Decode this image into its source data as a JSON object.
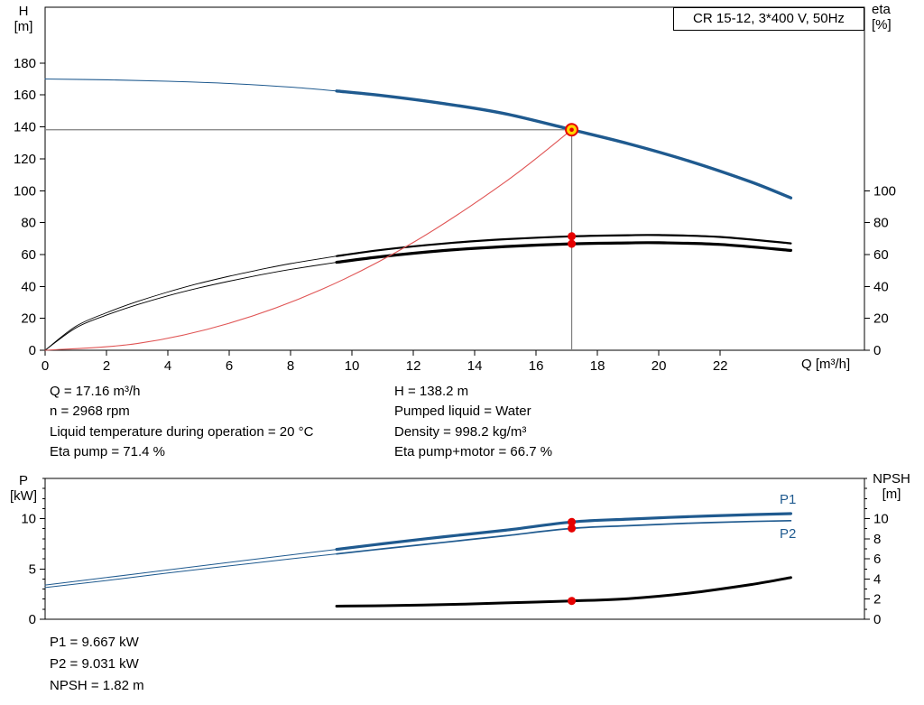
{
  "title_box": "CR 15-12, 3*400 V, 50Hz",
  "axis_labels": {
    "h": "H",
    "h_unit": "[m]",
    "eta": "eta",
    "eta_unit": "[%]",
    "q": "Q [m³/h]",
    "p": "P",
    "p_unit": "[kW]",
    "npsh": "NPSH",
    "npsh_unit": "[m]"
  },
  "info": {
    "q": "Q = 17.16 m³/h",
    "n": "n = 2968 rpm",
    "liquid_temp": "Liquid temperature during operation = 20 °C",
    "eta_pump": "Eta pump = 71.4 %",
    "h": "H = 138.2 m",
    "pumped_liquid": "Pumped liquid = Water",
    "density": "Density = 998.2 kg/m³",
    "eta_pump_motor": "Eta pump+motor = 66.7 %"
  },
  "results": {
    "p1": "P1 = 9.667 kW",
    "p2": "P2 = 9.031 kW",
    "npsh": "NPSH = 1.82 m"
  },
  "labels": {
    "p1": "P1",
    "p2": "P2"
  },
  "colors": {
    "curve_blue": "#1f5a8f",
    "curve_black": "#000000",
    "system_red": "#e05555",
    "marker_red": "#e60000",
    "marker_yellow": "#ffd400",
    "crosshair_gray": "#7f7f7f",
    "frame": "#000000"
  },
  "chart_data": [
    {
      "type": "line",
      "name": "hq-eta-chart",
      "title": "CR 15-12, 3*400 V, 50Hz",
      "xlabel": "Q [m³/h]",
      "ylabel_left": "H [m]",
      "ylabel_right": "eta [%]",
      "xlim": [
        0,
        26.7
      ],
      "ylim_left": [
        0,
        215
      ],
      "ylim_right": [
        0,
        215
      ],
      "x_ticks": [
        0,
        2,
        4,
        6,
        8,
        10,
        12,
        14,
        16,
        18,
        20,
        22
      ],
      "y_ticks_left": [
        0,
        20,
        40,
        60,
        80,
        100,
        120,
        140,
        160,
        180
      ],
      "y_ticks_right": [
        0,
        20,
        40,
        60,
        80,
        100
      ],
      "grid": false,
      "series": [
        {
          "name": "head-curve",
          "axis": "left",
          "color": "#1f5a8f",
          "split_at": 9.5,
          "width_thin": 1.1,
          "width_thick": 3.4,
          "points": [
            [
              0,
              170
            ],
            [
              2,
              169.5
            ],
            [
              4,
              168.6
            ],
            [
              6,
              167.2
            ],
            [
              8,
              164.9
            ],
            [
              9.5,
              162.5
            ],
            [
              11,
              159.6
            ],
            [
              13,
              154.6
            ],
            [
              15,
              148.2
            ],
            [
              17.16,
              138.2
            ],
            [
              19,
              129.5
            ],
            [
              21,
              118.5
            ],
            [
              23,
              105.5
            ],
            [
              24.3,
              95.5
            ]
          ]
        },
        {
          "name": "eta-pump-curve",
          "axis": "right",
          "color": "#000000",
          "split_at": 9.5,
          "width_thin": 0.9,
          "width_thick": 2.2,
          "points": [
            [
              0,
              0
            ],
            [
              1,
              15
            ],
            [
              2,
              23.5
            ],
            [
              3,
              30.5
            ],
            [
              4,
              36.5
            ],
            [
              5,
              41.8
            ],
            [
              6,
              46.4
            ],
            [
              7,
              50.5
            ],
            [
              8,
              54.3
            ],
            [
              9.5,
              59
            ],
            [
              11,
              63
            ],
            [
              13,
              66.9
            ],
            [
              15,
              69.6
            ],
            [
              17.16,
              71.4
            ],
            [
              19,
              72.1
            ],
            [
              20,
              72.2
            ],
            [
              22,
              71
            ],
            [
              24.3,
              67
            ]
          ]
        },
        {
          "name": "eta-pump-motor-curve",
          "axis": "right",
          "color": "#000000",
          "split_at": 9.5,
          "width_thin": 0.9,
          "width_thick": 3.2,
          "points": [
            [
              0,
              0
            ],
            [
              1,
              14
            ],
            [
              2,
              22
            ],
            [
              3,
              28.5
            ],
            [
              4,
              34.1
            ],
            [
              5,
              39
            ],
            [
              6,
              43.3
            ],
            [
              7,
              47.2
            ],
            [
              8,
              50.7
            ],
            [
              9.5,
              55.1
            ],
            [
              11,
              58.8
            ],
            [
              13,
              62.5
            ],
            [
              15,
              65
            ],
            [
              17.16,
              66.7
            ],
            [
              19,
              67.3
            ],
            [
              20,
              67.4
            ],
            [
              22,
              66.3
            ],
            [
              24.3,
              62.6
            ]
          ]
        },
        {
          "name": "system-curve",
          "axis": "left",
          "color": "#e05555",
          "width": 1.1,
          "points": [
            [
              0,
              0
            ],
            [
              3,
              4.2
            ],
            [
              6,
              16.9
            ],
            [
              9,
              38
            ],
            [
              12,
              67.6
            ],
            [
              15,
              105.6
            ],
            [
              17.16,
              138.2
            ]
          ]
        }
      ],
      "crosshair": {
        "q": 17.16,
        "h": 138.2
      },
      "operating_point": {
        "q": 17.16,
        "h": 138.2
      },
      "dots": [
        {
          "q": 17.16,
          "v": 71.4,
          "axis": "right"
        },
        {
          "q": 17.16,
          "v": 66.7,
          "axis": "right"
        }
      ]
    },
    {
      "type": "line",
      "name": "power-npsh-chart",
      "xlabel": "Q [m³/h]",
      "ylabel_left": "P [kW]",
      "ylabel_right": "NPSH [m]",
      "xlim": [
        0,
        26.7
      ],
      "ylim_left": [
        0,
        14
      ],
      "ylim_right": [
        0,
        14
      ],
      "x_ticks": [],
      "y_ticks_left": [
        0,
        5,
        10
      ],
      "y_ticks_right": [
        0,
        2,
        4,
        6,
        8,
        10
      ],
      "minor_tick_step": 1,
      "grid": false,
      "series": [
        {
          "name": "p1-curve",
          "axis": "left",
          "color": "#1f5a8f",
          "split_at": 9.5,
          "width_thin": 1,
          "width_thick": 3.2,
          "points": [
            [
              0,
              3.4
            ],
            [
              2,
              4.15
            ],
            [
              4,
              4.9
            ],
            [
              6,
              5.65
            ],
            [
              8,
              6.4
            ],
            [
              9.5,
              6.95
            ],
            [
              11,
              7.5
            ],
            [
              13,
              8.2
            ],
            [
              15,
              8.85
            ],
            [
              17.16,
              9.667
            ],
            [
              19,
              9.95
            ],
            [
              21,
              10.2
            ],
            [
              23,
              10.4
            ],
            [
              24.3,
              10.5
            ]
          ]
        },
        {
          "name": "p2-curve",
          "axis": "left",
          "color": "#1f5a8f",
          "split_at": 9.5,
          "width_thin": 1,
          "width_thick": 1.7,
          "points": [
            [
              0,
              3.15
            ],
            [
              2,
              3.85
            ],
            [
              4,
              4.6
            ],
            [
              6,
              5.3
            ],
            [
              8,
              6.0
            ],
            [
              9.5,
              6.5
            ],
            [
              11,
              7.0
            ],
            [
              13,
              7.65
            ],
            [
              15,
              8.3
            ],
            [
              17.16,
              9.031
            ],
            [
              19,
              9.3
            ],
            [
              21,
              9.55
            ],
            [
              23,
              9.72
            ],
            [
              24.3,
              9.8
            ]
          ]
        },
        {
          "name": "npsh-curve",
          "axis": "right",
          "color": "#000000",
          "width": 3,
          "points": [
            [
              9.5,
              1.3
            ],
            [
              11,
              1.35
            ],
            [
              13,
              1.45
            ],
            [
              15,
              1.62
            ],
            [
              17.16,
              1.82
            ],
            [
              19,
              2.05
            ],
            [
              21,
              2.6
            ],
            [
              23,
              3.45
            ],
            [
              24.3,
              4.15
            ]
          ]
        }
      ],
      "dots": [
        {
          "q": 17.16,
          "v": 9.667,
          "axis": "left"
        },
        {
          "q": 17.16,
          "v": 9.031,
          "axis": "left"
        },
        {
          "q": 17.16,
          "v": 1.82,
          "axis": "right"
        }
      ]
    }
  ]
}
